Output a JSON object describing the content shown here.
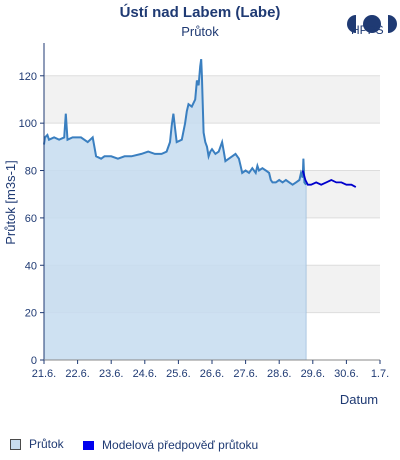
{
  "header": {
    "title": "Ústí nad Labem (Labe)",
    "subtitle": "Průtok",
    "logo_text": "HPPS"
  },
  "legend": {
    "observed_label": "Průtok",
    "forecast_label": "Modelová předpověď průtoku"
  },
  "colors": {
    "observed_line": "#3a7fc0",
    "observed_fill": "#c5dcf0",
    "forecast_line": "#0000cc",
    "band": "#f2f2f2",
    "axis": "#1f3a73"
  },
  "chart_data": {
    "type": "area",
    "xlabel": "Datum",
    "ylabel": "Průtok [m3s-1]",
    "ylim": [
      0,
      133
    ],
    "xlim": [
      0,
      10
    ],
    "yticks": [
      0,
      20,
      40,
      60,
      80,
      100,
      120
    ],
    "xtick_labels": [
      "21.6.",
      "22.6.",
      "23.6.",
      "24.6.",
      "25.6.",
      "26.6.",
      "27.6.",
      "28.6.",
      "29.6.",
      "30.6.",
      "1.7."
    ],
    "x_unit": "days since 21.6. 00:00",
    "series": [
      {
        "name": "Průtok",
        "points": [
          [
            0.0,
            91
          ],
          [
            0.03,
            94
          ],
          [
            0.1,
            95
          ],
          [
            0.15,
            93
          ],
          [
            0.3,
            94
          ],
          [
            0.45,
            93
          ],
          [
            0.6,
            94
          ],
          [
            0.65,
            104
          ],
          [
            0.7,
            93
          ],
          [
            0.85,
            94
          ],
          [
            1.1,
            94
          ],
          [
            1.3,
            92
          ],
          [
            1.45,
            94
          ],
          [
            1.5,
            90
          ],
          [
            1.55,
            86
          ],
          [
            1.7,
            85
          ],
          [
            1.8,
            86
          ],
          [
            2.0,
            86
          ],
          [
            2.2,
            85
          ],
          [
            2.4,
            86
          ],
          [
            2.6,
            86
          ],
          [
            2.9,
            87
          ],
          [
            3.1,
            88
          ],
          [
            3.3,
            87
          ],
          [
            3.5,
            87
          ],
          [
            3.65,
            88
          ],
          [
            3.75,
            92
          ],
          [
            3.8,
            99
          ],
          [
            3.85,
            104
          ],
          [
            3.9,
            98
          ],
          [
            3.95,
            92
          ],
          [
            4.1,
            93
          ],
          [
            4.2,
            100
          ],
          [
            4.25,
            105
          ],
          [
            4.3,
            108
          ],
          [
            4.4,
            107
          ],
          [
            4.5,
            110
          ],
          [
            4.55,
            118
          ],
          [
            4.6,
            116
          ],
          [
            4.65,
            124
          ],
          [
            4.68,
            127
          ],
          [
            4.7,
            120
          ],
          [
            4.72,
            110
          ],
          [
            4.75,
            96
          ],
          [
            4.8,
            92
          ],
          [
            4.85,
            90
          ],
          [
            4.9,
            86
          ],
          [
            4.95,
            88
          ],
          [
            5.0,
            89
          ],
          [
            5.1,
            87
          ],
          [
            5.2,
            88
          ],
          [
            5.3,
            92
          ],
          [
            5.35,
            88
          ],
          [
            5.4,
            84
          ],
          [
            5.5,
            85
          ],
          [
            5.6,
            86
          ],
          [
            5.7,
            87
          ],
          [
            5.8,
            85
          ],
          [
            5.85,
            82
          ],
          [
            5.9,
            79
          ],
          [
            6.0,
            80
          ],
          [
            6.1,
            79
          ],
          [
            6.2,
            81
          ],
          [
            6.3,
            79
          ],
          [
            6.35,
            82
          ],
          [
            6.4,
            80
          ],
          [
            6.5,
            81
          ],
          [
            6.6,
            80
          ],
          [
            6.7,
            79
          ],
          [
            6.75,
            76
          ],
          [
            6.8,
            75
          ],
          [
            6.9,
            75
          ],
          [
            7.0,
            76
          ],
          [
            7.1,
            75
          ],
          [
            7.2,
            76
          ],
          [
            7.3,
            75
          ],
          [
            7.4,
            74
          ],
          [
            7.5,
            75
          ],
          [
            7.6,
            76
          ],
          [
            7.65,
            79
          ],
          [
            7.7,
            77
          ],
          [
            7.72,
            85
          ],
          [
            7.75,
            75
          ],
          [
            7.8,
            74
          ]
        ]
      },
      {
        "name": "Modelová předpověď průtoku",
        "points": [
          [
            7.7,
            80
          ],
          [
            7.78,
            76
          ],
          [
            7.85,
            74
          ],
          [
            7.95,
            74
          ],
          [
            8.1,
            75
          ],
          [
            8.25,
            74
          ],
          [
            8.4,
            75
          ],
          [
            8.55,
            76
          ],
          [
            8.7,
            75
          ],
          [
            8.85,
            75
          ],
          [
            9.0,
            74
          ],
          [
            9.15,
            74
          ],
          [
            9.28,
            73
          ]
        ]
      }
    ]
  }
}
